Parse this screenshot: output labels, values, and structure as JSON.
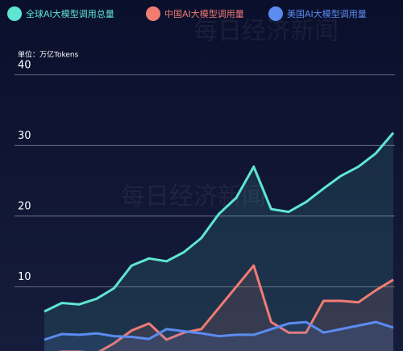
{
  "chart_data": {
    "type": "line",
    "unit_label": "单位：万亿Tokens",
    "watermark": "每日经济新闻",
    "categories": [
      null,
      null,
      null,
      null,
      null,
      null,
      null,
      null,
      null,
      null,
      null,
      null,
      null,
      null,
      null,
      null,
      null,
      null,
      null,
      null,
      null
    ],
    "series": [
      {
        "name": "全球AI大模型调用总量",
        "color": "#5ee6d0",
        "values": [
          6.5,
          7.7,
          7.5,
          8.3,
          9.8,
          13,
          14,
          13.6,
          14.9,
          16.9,
          20.3,
          22.6,
          27,
          21,
          20.6,
          22,
          23.9,
          25.7,
          27,
          28.9,
          31.8
        ]
      },
      {
        "name": "中国AI大模型调用量",
        "color": "#f07c72",
        "values": [
          0.5,
          0.8,
          0.8,
          0.6,
          2,
          3.8,
          4.8,
          2.5,
          3.5,
          4,
          7,
          10,
          13,
          5,
          3.5,
          3.5,
          8,
          8,
          7.8,
          9.5,
          11
        ]
      },
      {
        "name": "美国AI大模型调用量",
        "color": "#5b8cf0",
        "values": [
          2.5,
          3.3,
          3.2,
          3.4,
          3,
          2.9,
          2.6,
          4,
          3.7,
          3.4,
          3,
          3.2,
          3.2,
          4,
          4.8,
          5,
          3.5,
          4,
          4.5,
          5,
          4.2
        ]
      }
    ],
    "ylim": [
      0.9,
      50.6
    ],
    "yticks": [
      10,
      20,
      30,
      40
    ],
    "grid": true
  }
}
